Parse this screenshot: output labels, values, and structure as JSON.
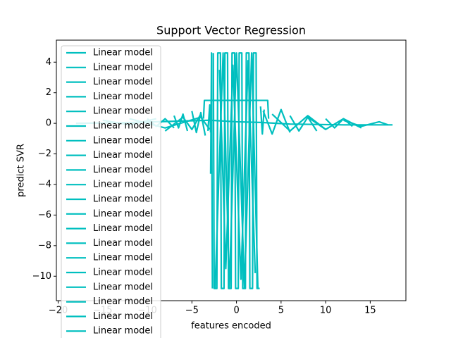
{
  "chart_data": {
    "type": "line",
    "title": "Support Vector Regression",
    "x_label": "features encoded",
    "y_label": "predict SVR",
    "xlim": [
      -20.2,
      19.0
    ],
    "ylim": [
      -11.6,
      5.44
    ],
    "xticks": [
      {
        "value": -20,
        "label": "−20"
      },
      {
        "value": -15,
        "label": "−15"
      },
      {
        "value": -10,
        "label": "−10"
      },
      {
        "value": -5,
        "label": "−5"
      },
      0,
      5,
      10,
      15
    ],
    "yticks": [
      {
        "value": -10,
        "label": "−10"
      },
      {
        "value": -8,
        "label": "−8"
      },
      {
        "value": -6,
        "label": "−6"
      },
      {
        "value": -4,
        "label": "−4"
      },
      {
        "value": -2,
        "label": "−2"
      },
      0,
      2,
      4
    ],
    "legend": "upper left",
    "series": [
      {
        "name": "Linear model",
        "color": "#00bfbf",
        "x": [
          -18,
          -12,
          -6,
          -3,
          0,
          3,
          6,
          12,
          17.5
        ],
        "values": [
          0,
          0.05,
          0.15,
          0.2,
          0.1,
          0.05,
          -0.05,
          -0.1,
          -0.1
        ]
      },
      {
        "name": "Linear model",
        "color": "#00bfbf",
        "x": [
          -2.6,
          -2.5,
          -2.2,
          -2.1,
          -1.8,
          -1.7,
          -1.4,
          -1.3,
          -1.0,
          -0.9,
          -0.6,
          -0.5,
          -0.2,
          -0.1,
          0.2,
          0.3,
          0.6,
          0.7,
          1.0,
          1.1,
          1.4,
          1.5,
          1.8,
          1.9,
          2.2,
          2.3,
          2.6
        ],
        "values": [
          4.6,
          -10.8,
          -10.8,
          4.6,
          4.6,
          -10.8,
          -10.8,
          4.6,
          4.6,
          -10.8,
          -10.8,
          4.6,
          4.6,
          -10.8,
          -10.8,
          4.6,
          4.6,
          -10.8,
          -10.8,
          4.6,
          4.6,
          -10.8,
          -10.8,
          4.6,
          4.6,
          -10.8,
          -10.8
        ]
      },
      {
        "name": "Linear model",
        "color": "#00bfbf",
        "x": [
          -2.9,
          -2.8,
          -2.7
        ],
        "values": [
          -3.3,
          4.6,
          -10.8
        ]
      },
      {
        "name": "Linear model",
        "color": "#00bfbf",
        "x": [
          -3.7,
          -3.6,
          3.5,
          3.6
        ],
        "values": [
          0.3,
          1.5,
          1.5,
          0.3
        ]
      },
      {
        "name": "Linear model",
        "color": "#00bfbf",
        "x": [
          -12,
          -8,
          -4,
          -3
        ],
        "values": [
          0.3,
          -0.3,
          0.4,
          -0.4
        ]
      },
      {
        "name": "Linear model",
        "color": "#00bfbf",
        "x": [
          -8,
          -6,
          -5,
          -4
        ],
        "values": [
          -0.5,
          0.4,
          -0.4,
          0.6
        ]
      },
      {
        "name": "Linear model",
        "color": "#00bfbf",
        "x": [
          -5,
          -4.5,
          -4,
          -3.5
        ],
        "values": [
          0.8,
          -0.6,
          0.7,
          -0.8
        ]
      },
      {
        "name": "Linear model",
        "color": "#00bfbf",
        "x": [
          3,
          4,
          5,
          6
        ],
        "values": [
          0.8,
          -0.7,
          0.9,
          -0.6
        ]
      },
      {
        "name": "Linear model",
        "color": "#00bfbf",
        "x": [
          4,
          6,
          8,
          10
        ],
        "values": [
          0.6,
          -0.5,
          0.5,
          -0.4
        ]
      },
      {
        "name": "Linear model",
        "color": "#00bfbf",
        "x": [
          8,
          10,
          12,
          14
        ],
        "values": [
          0.4,
          -0.4,
          0.3,
          -0.3
        ]
      },
      {
        "name": "Linear model",
        "color": "#00bfbf",
        "x": [
          12,
          14,
          16,
          17
        ],
        "values": [
          0.2,
          -0.2,
          0.1,
          -0.1
        ]
      },
      {
        "name": "Linear model",
        "color": "#00bfbf",
        "x": [
          -3.2,
          -3.0,
          -2.9
        ],
        "values": [
          -0.5,
          1.2,
          -0.6
        ]
      },
      {
        "name": "Linear model",
        "color": "#00bfbf",
        "x": [
          2.7,
          2.9,
          3.1
        ],
        "values": [
          1.1,
          -0.7,
          0.9
        ]
      },
      {
        "name": "Linear model",
        "color": "#00bfbf",
        "x": [
          -15,
          -12,
          -9
        ],
        "values": [
          0.2,
          -0.1,
          0.3
        ]
      },
      {
        "name": "Linear model",
        "color": "#00bfbf",
        "x": [
          6,
          7,
          8,
          9
        ],
        "values": [
          0.5,
          -0.5,
          0.4,
          -0.5
        ]
      },
      {
        "name": "Linear model",
        "color": "#00bfbf",
        "x": [
          -7,
          -6.5,
          -6,
          -5.5
        ],
        "values": [
          0.5,
          -0.3,
          0.6,
          -0.5
        ]
      },
      {
        "name": "Linear model",
        "color": "#00bfbf",
        "x": [
          -1.9,
          -1.2,
          -0.4,
          0.5,
          1.3,
          2.1
        ],
        "values": [
          3.5,
          -9.5,
          3.8,
          -10.2,
          4.1,
          -9.8
        ]
      },
      {
        "name": "Linear model",
        "color": "#00bfbf",
        "x": [
          -2.4,
          -1.5,
          -0.8,
          0,
          0.9,
          1.7,
          2.4
        ],
        "values": [
          -10.8,
          4.6,
          -10.8,
          4.6,
          -10.8,
          4.6,
          -10.8
        ]
      },
      {
        "name": "Linear model",
        "color": "#00bfbf",
        "x": [
          10,
          11,
          12,
          13
        ],
        "values": [
          0.3,
          -0.3,
          0.3,
          -0.2
        ]
      },
      {
        "name": "Linear model",
        "color": "#00bfbf",
        "x": [
          -10,
          -9,
          -8,
          -7
        ],
        "values": [
          0.3,
          -0.2,
          0.3,
          -0.3
        ]
      }
    ]
  }
}
